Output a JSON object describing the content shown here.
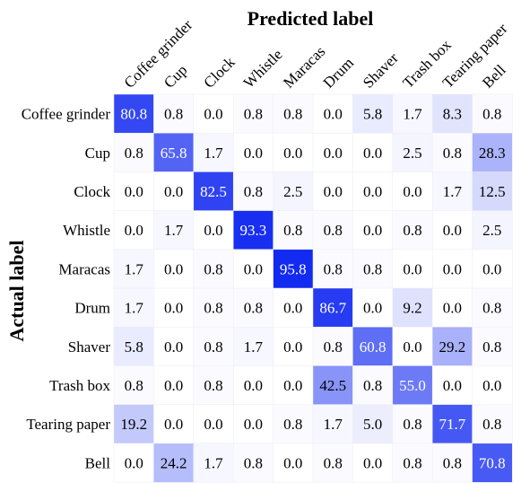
{
  "chart_data": {
    "type": "heatmap",
    "xlabel": "Predicted label",
    "ylabel": "Actual label",
    "categories": [
      "Coffee grinder",
      "Cup",
      "Clock",
      "Whistle",
      "Maracas",
      "Drum",
      "Shaver",
      "Trash box",
      "Tearing paper",
      "Bell"
    ],
    "values": [
      [
        80.8,
        0.8,
        0.0,
        0.8,
        0.8,
        0.0,
        5.8,
        1.7,
        8.3,
        0.8
      ],
      [
        0.8,
        65.8,
        1.7,
        0.0,
        0.0,
        0.0,
        0.0,
        2.5,
        0.8,
        28.3
      ],
      [
        0.0,
        0.0,
        82.5,
        0.8,
        2.5,
        0.0,
        0.0,
        0.0,
        1.7,
        12.5
      ],
      [
        0.0,
        1.7,
        0.0,
        93.3,
        0.8,
        0.8,
        0.0,
        0.8,
        0.0,
        2.5
      ],
      [
        1.7,
        0.0,
        0.8,
        0.0,
        95.8,
        0.8,
        0.8,
        0.0,
        0.0,
        0.0
      ],
      [
        1.7,
        0.0,
        0.8,
        0.8,
        0.0,
        86.7,
        0.0,
        9.2,
        0.0,
        0.8
      ],
      [
        5.8,
        0.0,
        0.8,
        1.7,
        0.0,
        0.8,
        60.8,
        0.0,
        29.2,
        0.8
      ],
      [
        0.8,
        0.0,
        0.8,
        0.0,
        0.0,
        42.5,
        0.8,
        55.0,
        0.0,
        0.0
      ],
      [
        19.2,
        0.0,
        0.0,
        0.0,
        0.8,
        1.7,
        5.0,
        0.8,
        71.7,
        0.8
      ],
      [
        0.0,
        24.2,
        1.7,
        0.8,
        0.0,
        0.8,
        0.0,
        0.8,
        0.8,
        70.8
      ]
    ],
    "value_range": [
      0,
      100
    ],
    "colors": {
      "low": "#ffffff",
      "high": "#0a22f0",
      "text_dark": "#000000",
      "text_light": "#ffffff"
    }
  }
}
